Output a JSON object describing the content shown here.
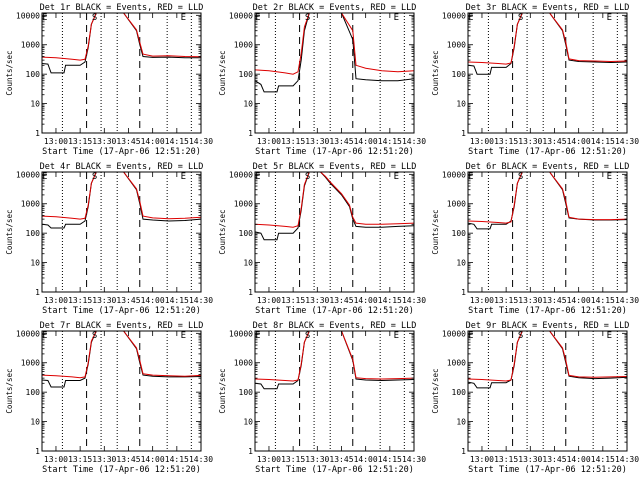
{
  "colors": {
    "events": "#000000",
    "lld": "#dd0000",
    "background": "#ffffff"
  },
  "labels": {
    "ylabel": "Counts/sec",
    "xlabel": "Start Time (17-Apr-06 12:51:20)",
    "title_suffix": "BLACK = Events, RED = LLD"
  },
  "axes": {
    "xlim": [
      "12:51:20",
      "14:30:00"
    ],
    "ylim": [
      1,
      12000
    ],
    "yscale": "log",
    "x_ticks": [
      "13:00",
      "13:15",
      "13:30",
      "13:45",
      "14:00",
      "14:15",
      "14:30"
    ],
    "y_ticks": [
      "1",
      "10",
      "100",
      "1000",
      "10000"
    ],
    "dashed_lines": [
      "13:19",
      "13:52"
    ],
    "dotted_lines": [
      "13:04",
      "13:28",
      "13:38",
      "14:09",
      "14:24"
    ],
    "markers": [
      {
        "label": "S",
        "time": "13:24"
      },
      {
        "label": "E",
        "time": "12:53"
      },
      {
        "label": "E",
        "time": "14:19"
      }
    ]
  },
  "chart_data": [
    {
      "type": "line",
      "title": "Det 1r",
      "series": [
        {
          "name": "Events",
          "x": [
            "12:51:20",
            "12:55",
            "12:57",
            "12:58",
            "13:05",
            "13:06",
            "13:15",
            "13:18",
            "13:20",
            "13:22",
            "13:25",
            "13:32",
            "13:35",
            "13:42",
            "13:50",
            "13:52",
            "13:54",
            "14:00",
            "14:10",
            "14:20",
            "14:30"
          ],
          "y": [
            230,
            220,
            110,
            110,
            110,
            200,
            200,
            260,
            800,
            5000,
            12000,
            12000,
            12000,
            12000,
            3000,
            1000,
            400,
            370,
            380,
            360,
            360
          ]
        },
        {
          "name": "LLD",
          "x": [
            "12:51:20",
            "13:00",
            "13:10",
            "13:15",
            "13:18",
            "13:20",
            "13:22",
            "13:25",
            "13:32",
            "13:35",
            "13:42",
            "13:50",
            "13:52",
            "13:54",
            "14:00",
            "14:10",
            "14:20",
            "14:30"
          ],
          "y": [
            380,
            360,
            320,
            300,
            320,
            900,
            5000,
            12000,
            12000,
            12000,
            12000,
            3200,
            1200,
            480,
            410,
            420,
            400,
            390
          ]
        }
      ]
    },
    {
      "type": "line",
      "title": "Det 2r",
      "series": [
        {
          "name": "Events",
          "x": [
            "12:51:20",
            "12:55",
            "12:57",
            "13:02",
            "13:05",
            "13:06",
            "13:15",
            "13:18",
            "13:20",
            "13:22",
            "13:25",
            "13:32",
            "13:35",
            "13:45",
            "13:52",
            "13:54",
            "14:00",
            "14:10",
            "14:20",
            "14:30"
          ],
          "y": [
            60,
            45,
            25,
            25,
            25,
            40,
            40,
            60,
            300,
            3000,
            12000,
            12000,
            12000,
            12000,
            1500,
            70,
            65,
            60,
            60,
            70
          ]
        },
        {
          "name": "LLD",
          "x": [
            "12:51:20",
            "13:00",
            "13:10",
            "13:15",
            "13:18",
            "13:20",
            "13:22",
            "13:25",
            "13:32",
            "13:35",
            "13:45",
            "13:52",
            "13:54",
            "14:00",
            "14:10",
            "14:20",
            "14:30"
          ],
          "y": [
            140,
            130,
            110,
            100,
            120,
            500,
            4000,
            12000,
            12000,
            12000,
            12000,
            3000,
            200,
            160,
            130,
            120,
            130
          ]
        }
      ]
    },
    {
      "type": "line",
      "title": "Det 3r",
      "series": [
        {
          "name": "Events",
          "x": [
            "12:51:20",
            "12:55",
            "12:57",
            "13:02",
            "13:05",
            "13:06",
            "13:15",
            "13:18",
            "13:20",
            "13:22",
            "13:25",
            "13:32",
            "13:35",
            "13:42",
            "13:50",
            "13:52",
            "13:54",
            "14:00",
            "14:10",
            "14:20",
            "14:30"
          ],
          "y": [
            200,
            190,
            100,
            100,
            100,
            170,
            170,
            230,
            800,
            5000,
            12000,
            12000,
            12000,
            12000,
            3000,
            1000,
            300,
            270,
            260,
            250,
            260
          ]
        },
        {
          "name": "LLD",
          "x": [
            "12:51:20",
            "13:00",
            "13:10",
            "13:15",
            "13:18",
            "13:20",
            "13:22",
            "13:25",
            "13:32",
            "13:35",
            "13:42",
            "13:50",
            "13:52",
            "13:54",
            "14:00",
            "14:10",
            "14:20",
            "14:30"
          ],
          "y": [
            260,
            250,
            230,
            220,
            240,
            900,
            5000,
            12000,
            12000,
            12000,
            12000,
            3200,
            1200,
            330,
            290,
            280,
            270,
            280
          ]
        }
      ]
    },
    {
      "type": "line",
      "title": "Det 4r",
      "series": [
        {
          "name": "Events",
          "x": [
            "12:51:20",
            "12:55",
            "12:57",
            "13:02",
            "13:05",
            "13:06",
            "13:15",
            "13:18",
            "13:20",
            "13:22",
            "13:25",
            "13:32",
            "13:35",
            "13:42",
            "13:50",
            "13:52",
            "13:54",
            "14:00",
            "14:10",
            "14:20",
            "14:30"
          ],
          "y": [
            200,
            190,
            150,
            150,
            150,
            200,
            200,
            260,
            800,
            5000,
            12000,
            12000,
            12000,
            12000,
            3000,
            1000,
            300,
            280,
            260,
            270,
            300
          ]
        },
        {
          "name": "LLD",
          "x": [
            "12:51:20",
            "13:00",
            "13:10",
            "13:15",
            "13:18",
            "13:20",
            "13:22",
            "13:25",
            "13:32",
            "13:35",
            "13:42",
            "13:50",
            "13:52",
            "13:54",
            "14:00",
            "14:10",
            "14:20",
            "14:30"
          ],
          "y": [
            380,
            360,
            320,
            300,
            320,
            900,
            5000,
            12000,
            12000,
            12000,
            12000,
            3200,
            1200,
            380,
            330,
            310,
            320,
            350
          ]
        }
      ]
    },
    {
      "type": "line",
      "title": "Det 5r",
      "series": [
        {
          "name": "Events",
          "x": [
            "12:51:20",
            "12:55",
            "12:57",
            "13:02",
            "13:05",
            "13:06",
            "13:15",
            "13:18",
            "13:20",
            "13:22",
            "13:25",
            "13:32",
            "13:35",
            "13:38",
            "13:45",
            "13:50",
            "13:52",
            "13:54",
            "14:00",
            "14:10",
            "14:20",
            "14:30"
          ],
          "y": [
            110,
            100,
            60,
            60,
            60,
            100,
            100,
            150,
            600,
            4000,
            12000,
            12000,
            8000,
            5000,
            2000,
            800,
            300,
            170,
            160,
            160,
            170,
            180
          ]
        },
        {
          "name": "LLD",
          "x": [
            "12:51:20",
            "13:00",
            "13:10",
            "13:15",
            "13:18",
            "13:20",
            "13:22",
            "13:25",
            "13:32",
            "13:35",
            "13:38",
            "13:45",
            "13:50",
            "13:52",
            "13:54",
            "14:00",
            "14:10",
            "14:20",
            "14:30"
          ],
          "y": [
            200,
            190,
            170,
            160,
            180,
            700,
            4500,
            12000,
            12000,
            8500,
            5500,
            2200,
            900,
            350,
            220,
            200,
            200,
            210,
            220
          ]
        }
      ]
    },
    {
      "type": "line",
      "title": "Det 6r",
      "series": [
        {
          "name": "Events",
          "x": [
            "12:51:20",
            "12:55",
            "12:57",
            "13:02",
            "13:05",
            "13:06",
            "13:15",
            "13:18",
            "13:20",
            "13:22",
            "13:25",
            "13:32",
            "13:35",
            "13:42",
            "13:50",
            "13:52",
            "13:54",
            "14:00",
            "14:10",
            "14:20",
            "14:30"
          ],
          "y": [
            220,
            200,
            140,
            140,
            140,
            200,
            200,
            260,
            800,
            5000,
            12000,
            12000,
            12000,
            12000,
            3000,
            1000,
            330,
            300,
            280,
            280,
            290
          ]
        },
        {
          "name": "LLD",
          "x": [
            "12:51:20",
            "13:00",
            "13:10",
            "13:15",
            "13:18",
            "13:20",
            "13:22",
            "13:25",
            "13:32",
            "13:35",
            "13:42",
            "13:50",
            "13:52",
            "13:54",
            "14:00",
            "14:10",
            "14:20",
            "14:30"
          ],
          "y": [
            260,
            250,
            230,
            220,
            240,
            900,
            5000,
            12000,
            12000,
            12000,
            12000,
            3200,
            1200,
            350,
            300,
            290,
            290,
            300
          ]
        }
      ]
    },
    {
      "type": "line",
      "title": "Det 7r",
      "series": [
        {
          "name": "Events",
          "x": [
            "12:51:20",
            "12:55",
            "12:57",
            "13:02",
            "13:05",
            "13:06",
            "13:15",
            "13:18",
            "13:20",
            "13:22",
            "13:25",
            "13:32",
            "13:35",
            "13:42",
            "13:50",
            "13:52",
            "13:54",
            "14:00",
            "14:10",
            "14:20",
            "14:30"
          ],
          "y": [
            260,
            250,
            150,
            150,
            150,
            250,
            250,
            300,
            900,
            5000,
            12000,
            12000,
            12000,
            12000,
            3000,
            1000,
            380,
            350,
            330,
            330,
            340
          ]
        },
        {
          "name": "LLD",
          "x": [
            "12:51:20",
            "13:00",
            "13:10",
            "13:15",
            "13:18",
            "13:20",
            "13:22",
            "13:25",
            "13:32",
            "13:35",
            "13:42",
            "13:50",
            "13:52",
            "13:54",
            "14:00",
            "14:10",
            "14:20",
            "14:30"
          ],
          "y": [
            380,
            360,
            330,
            310,
            330,
            1000,
            5500,
            12000,
            12000,
            12000,
            12000,
            3200,
            1200,
            420,
            380,
            360,
            350,
            370
          ]
        }
      ]
    },
    {
      "type": "line",
      "title": "Det 8r",
      "series": [
        {
          "name": "Events",
          "x": [
            "12:51:20",
            "12:55",
            "12:57",
            "13:02",
            "13:05",
            "13:06",
            "13:15",
            "13:18",
            "13:20",
            "13:22",
            "13:25",
            "13:32",
            "13:35",
            "13:45",
            "13:52",
            "13:54",
            "14:00",
            "14:10",
            "14:20",
            "14:30"
          ],
          "y": [
            200,
            190,
            130,
            130,
            130,
            190,
            190,
            250,
            800,
            5000,
            12000,
            12000,
            12000,
            12000,
            1200,
            280,
            260,
            250,
            260,
            270
          ]
        },
        {
          "name": "LLD",
          "x": [
            "12:51:20",
            "13:00",
            "13:10",
            "13:15",
            "13:18",
            "13:20",
            "13:22",
            "13:25",
            "13:32",
            "13:35",
            "13:45",
            "13:52",
            "13:54",
            "14:00",
            "14:10",
            "14:20",
            "14:30"
          ],
          "y": [
            280,
            270,
            250,
            240,
            260,
            900,
            5000,
            12000,
            12000,
            12000,
            12000,
            1300,
            310,
            290,
            280,
            290,
            300
          ]
        }
      ]
    },
    {
      "type": "line",
      "title": "Det 9r",
      "series": [
        {
          "name": "Events",
          "x": [
            "12:51:20",
            "12:55",
            "12:57",
            "13:02",
            "13:05",
            "13:06",
            "13:15",
            "13:18",
            "13:20",
            "13:22",
            "13:25",
            "13:32",
            "13:35",
            "13:42",
            "13:50",
            "13:52",
            "13:54",
            "14:00",
            "14:10",
            "14:20",
            "14:30"
          ],
          "y": [
            220,
            200,
            140,
            140,
            140,
            210,
            210,
            260,
            800,
            5000,
            12000,
            12000,
            12000,
            12000,
            3000,
            1000,
            350,
            310,
            290,
            300,
            320
          ]
        },
        {
          "name": "LLD",
          "x": [
            "12:51:20",
            "13:00",
            "13:10",
            "13:15",
            "13:18",
            "13:20",
            "13:22",
            "13:25",
            "13:32",
            "13:35",
            "13:42",
            "13:50",
            "13:52",
            "13:54",
            "14:00",
            "14:10",
            "14:20",
            "14:30"
          ],
          "y": [
            280,
            270,
            250,
            240,
            260,
            900,
            5000,
            12000,
            12000,
            12000,
            12000,
            3200,
            1200,
            370,
            330,
            320,
            330,
            340
          ]
        }
      ]
    }
  ]
}
